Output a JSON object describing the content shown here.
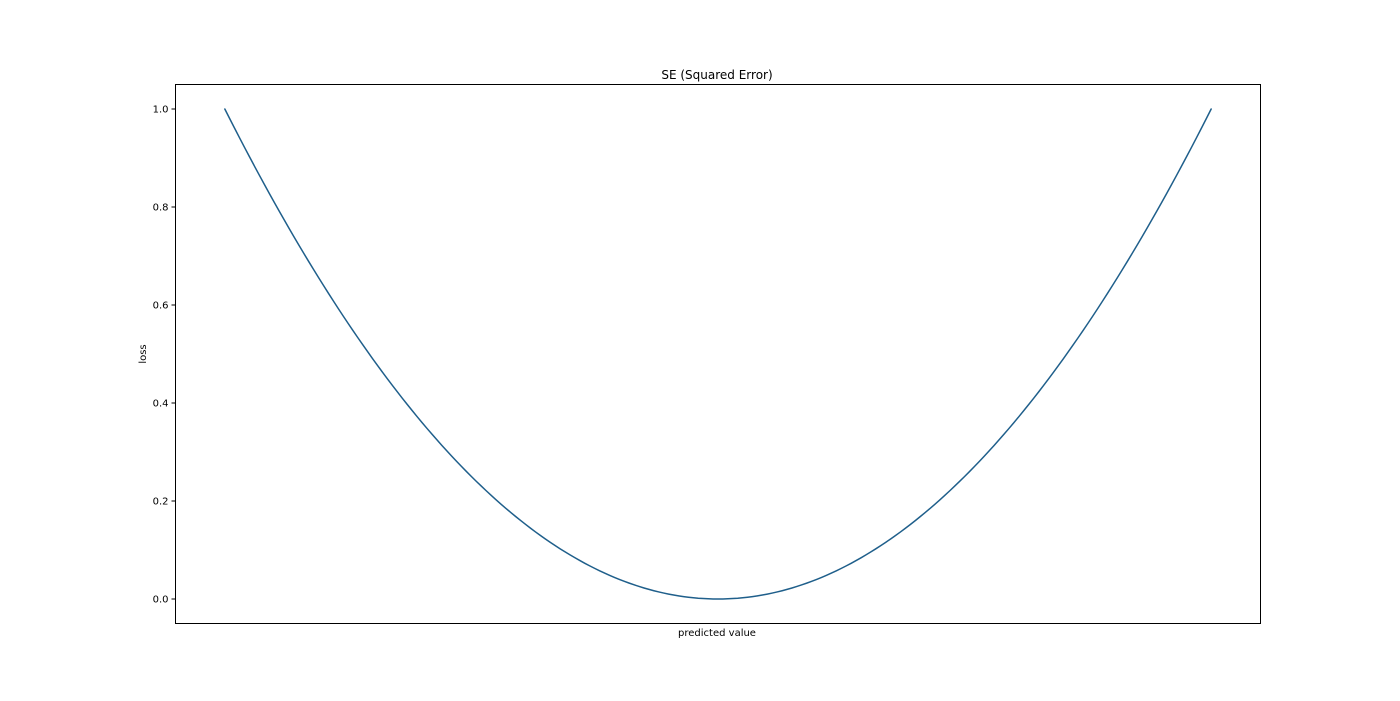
{
  "chart_data": {
    "type": "line",
    "title": "SE (Squared Error)",
    "xlabel": "predicted value",
    "ylabel": "loss",
    "x_tick_labels_shown": false,
    "xlim": [
      -1.1,
      1.1
    ],
    "ylim": [
      -0.05,
      1.05
    ],
    "yticks": [
      0.0,
      0.2,
      0.4,
      0.6,
      0.8,
      1.0
    ],
    "ytick_labels": [
      "0.0",
      "0.2",
      "0.4",
      "0.6",
      "0.8",
      "1.0"
    ],
    "grid": false,
    "legend": "none",
    "series": [
      {
        "color": "#1f5f8b",
        "x": [
          -1.0,
          -0.9,
          -0.8,
          -0.7,
          -0.6,
          -0.5,
          -0.4,
          -0.3,
          -0.2,
          -0.1,
          0.0,
          0.1,
          0.2,
          0.3,
          0.4,
          0.5,
          0.6,
          0.7,
          0.8,
          0.9,
          1.0
        ],
        "y": [
          1.0,
          0.81,
          0.64,
          0.49,
          0.36,
          0.25,
          0.16,
          0.09,
          0.04,
          0.01,
          0.0,
          0.01,
          0.04,
          0.09,
          0.16,
          0.25,
          0.36,
          0.49,
          0.64,
          0.81,
          1.0
        ]
      }
    ]
  }
}
